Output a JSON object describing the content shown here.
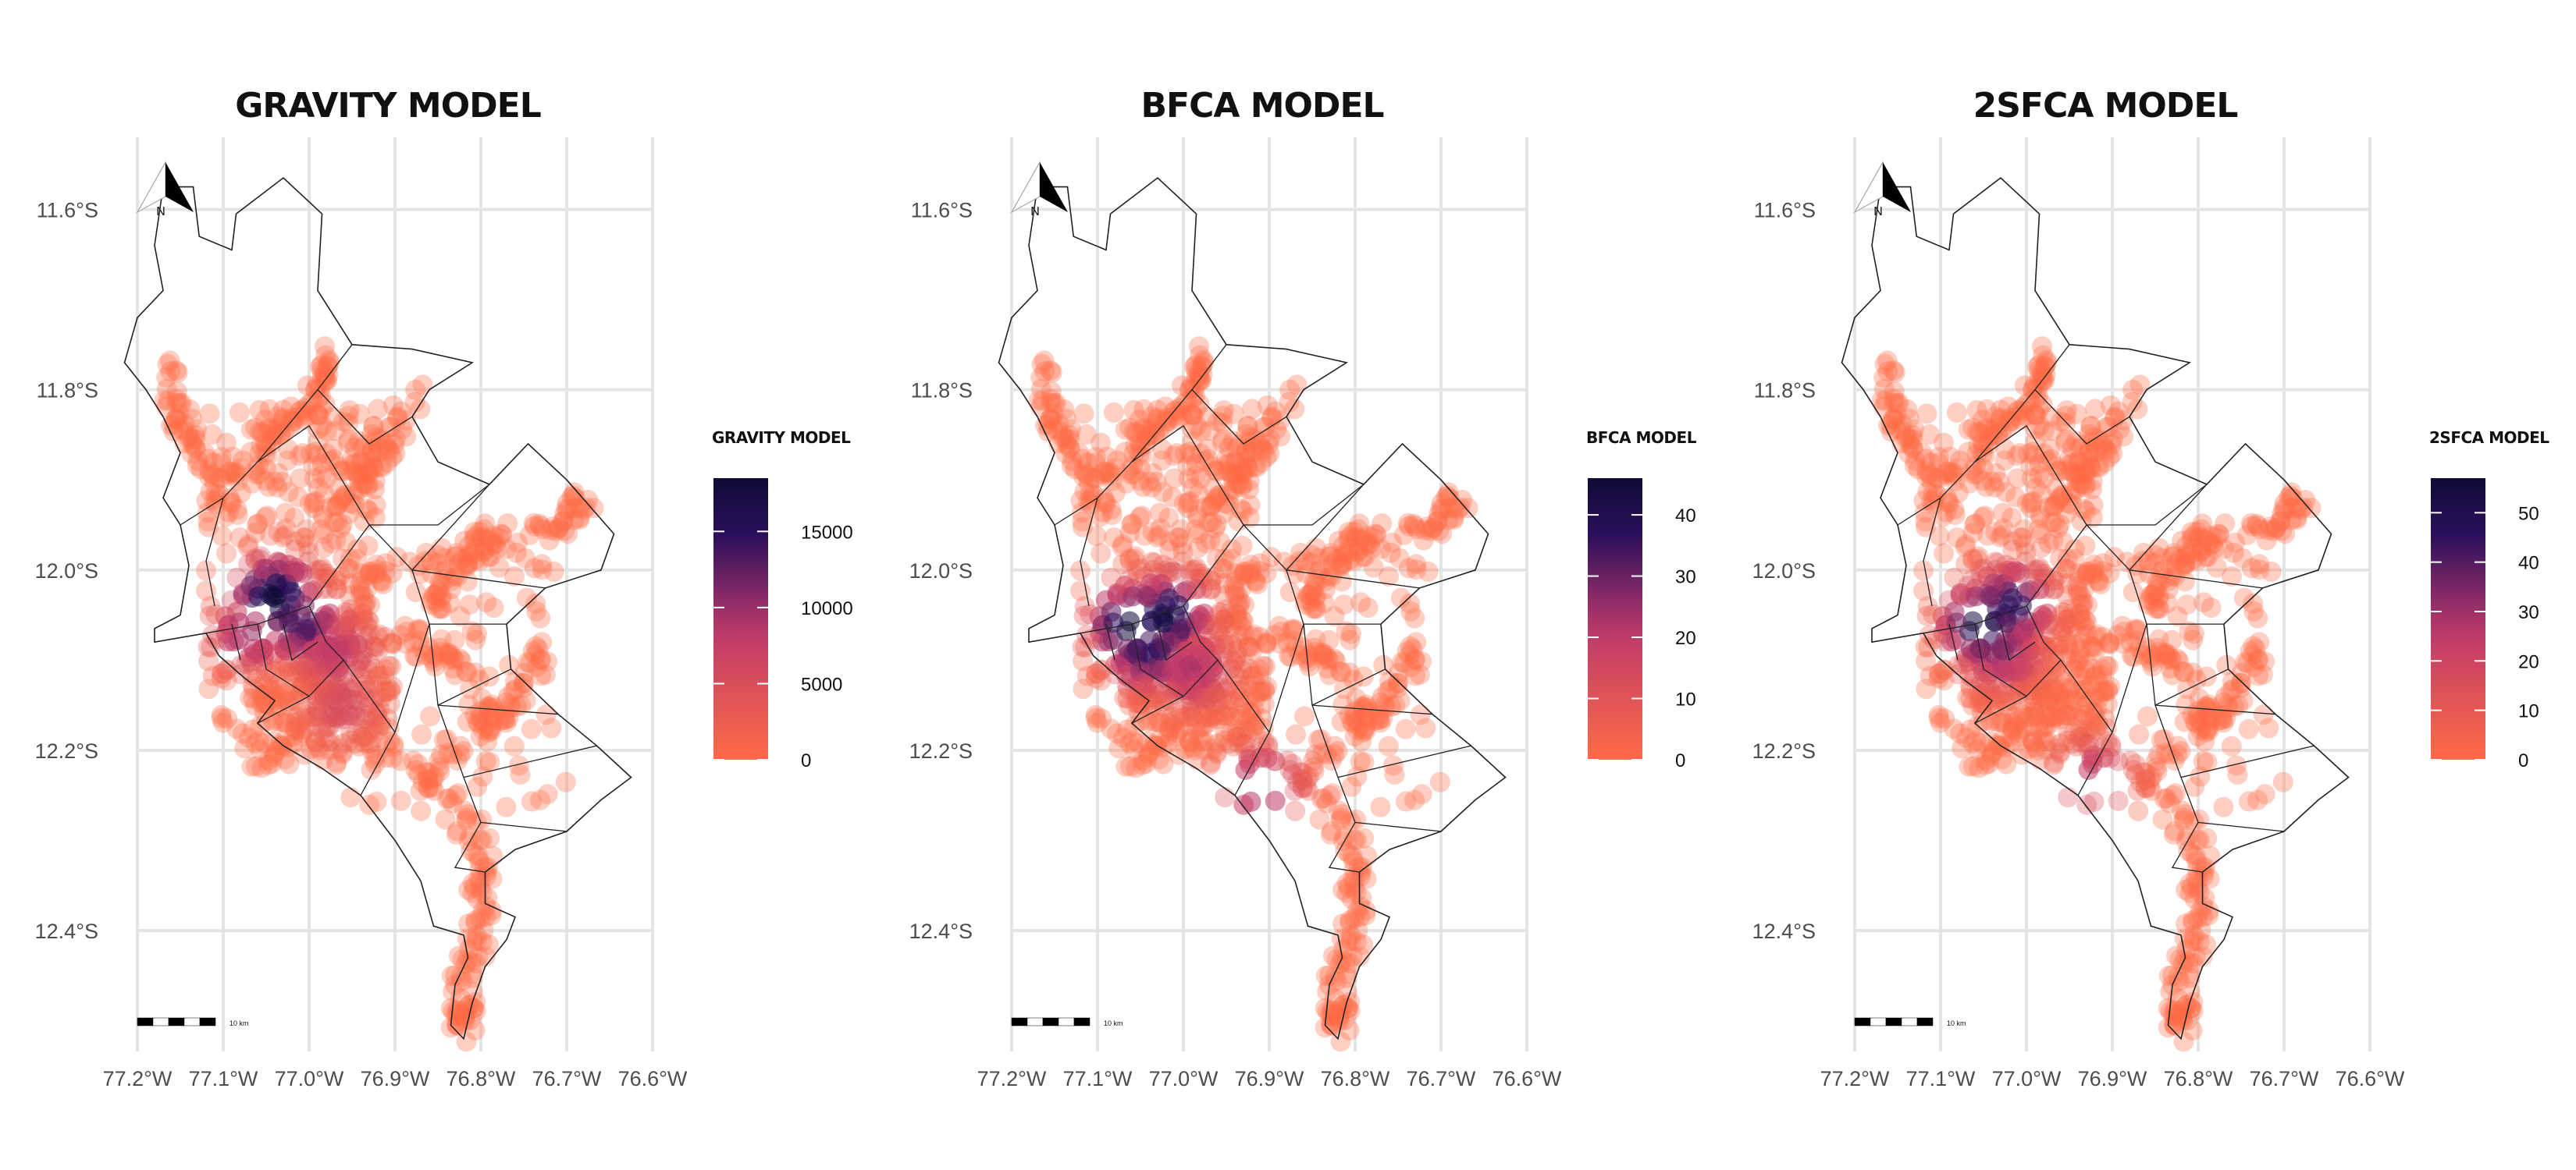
{
  "chart_data": [
    {
      "type": "map",
      "title": "GRAVITY MODEL",
      "legend": {
        "title": "GRAVITY MODEL",
        "min": 0,
        "max": 18500,
        "ticks": [
          0,
          5000,
          10000,
          15000
        ],
        "tick_labels": [
          "0",
          "5000",
          "10000",
          "15000"
        ]
      },
      "hotspots": [
        {
          "lon": -77.04,
          "lat": -12.03,
          "level": 1.0
        },
        {
          "lon": -77.01,
          "lat": -12.06,
          "level": 0.75
        },
        {
          "lon": -77.07,
          "lat": -12.07,
          "level": 0.55
        },
        {
          "lon": -76.97,
          "lat": -12.09,
          "level": 0.45
        },
        {
          "lon": -76.96,
          "lat": -12.15,
          "level": 0.3
        }
      ]
    },
    {
      "type": "map",
      "title": "BFCA MODEL",
      "legend": {
        "title": "BFCA MODEL",
        "min": 0,
        "max": 46,
        "ticks": [
          0,
          10,
          20,
          30,
          40
        ],
        "tick_labels": [
          "0",
          "10",
          "20",
          "30",
          "40"
        ]
      },
      "hotspots": [
        {
          "lon": -77.06,
          "lat": -12.06,
          "level": 1.0
        },
        {
          "lon": -77.02,
          "lat": -12.05,
          "level": 0.95
        },
        {
          "lon": -77.04,
          "lat": -12.09,
          "level": 0.8
        },
        {
          "lon": -76.99,
          "lat": -12.11,
          "level": 0.5
        },
        {
          "lon": -76.91,
          "lat": -12.24,
          "level": 0.6
        }
      ]
    },
    {
      "type": "map",
      "title": "2SFCA MODEL",
      "legend": {
        "title": "2SFCA MODEL",
        "min": 0,
        "max": 57,
        "ticks": [
          0,
          10,
          20,
          30,
          40,
          50
        ],
        "tick_labels": [
          "0",
          "10",
          "20",
          "30",
          "40",
          "50"
        ]
      },
      "hotspots": [
        {
          "lon": -77.05,
          "lat": -12.06,
          "level": 1.0
        },
        {
          "lon": -77.02,
          "lat": -12.04,
          "level": 0.85
        },
        {
          "lon": -77.03,
          "lat": -12.09,
          "level": 0.6
        },
        {
          "lon": -76.92,
          "lat": -12.23,
          "level": 0.45
        }
      ]
    }
  ],
  "axes": {
    "x_ticks": [
      -77.2,
      -77.1,
      -77.0,
      -76.9,
      -76.8,
      -76.7,
      -76.6
    ],
    "x_tick_labels": [
      "77.2°W",
      "77.1°W",
      "77.0°W",
      "76.9°W",
      "76.8°W",
      "76.7°W",
      "76.6°W"
    ],
    "y_ticks": [
      -11.6,
      -11.8,
      -12.0,
      -12.2,
      -12.4
    ],
    "y_tick_labels": [
      "11.6°S",
      "11.8°S",
      "12.0°S",
      "12.2°S",
      "12.4°S"
    ],
    "x_range": [
      -77.2,
      -76.6
    ],
    "y_range": [
      -12.56,
      -11.52
    ],
    "grid": true
  },
  "north_arrow": {
    "label": "N"
  },
  "scale_bar": {
    "label": "10 km"
  },
  "colors": {
    "low": "#ff6b45",
    "mid": "#c03a6b",
    "high": "#2a0f5c",
    "top": "#0f0a35",
    "grid": "#e5e5e5"
  }
}
